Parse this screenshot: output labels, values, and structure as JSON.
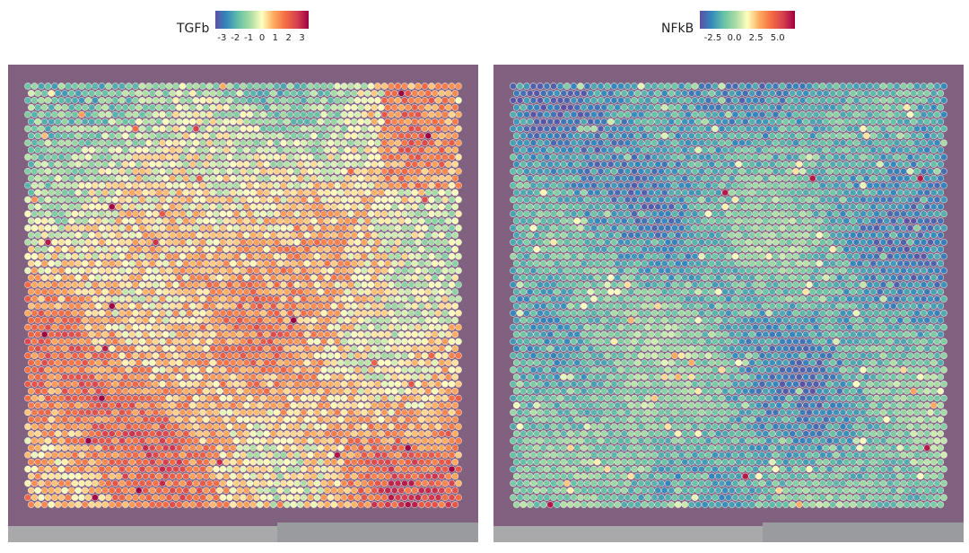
{
  "chart_data": [
    {
      "type": "heatmap",
      "variable": "TGFb",
      "legend": {
        "title": "TGFb",
        "ticks": [
          -3,
          -2,
          -1,
          0,
          1,
          2,
          3
        ],
        "tick_labels": [
          "-3",
          "-2",
          "-1",
          "0",
          "1",
          "2",
          "3"
        ],
        "range": [
          -3.5,
          3.5
        ],
        "colormap": "Spectral (reversed): blue low, yellow mid, red high"
      },
      "grid": {
        "cols": 65,
        "rows": 60,
        "layout": "hexagonal"
      },
      "pattern": "mostly neutral-to-positive (yellow/orange); lower values (blue/green) concentrated in the upper rows; high values (orange/red) in lower half and upper-right"
    },
    {
      "type": "heatmap",
      "variable": "NFkB",
      "legend": {
        "title": "NFkB",
        "ticks": [
          -2.5,
          0.0,
          2.5,
          5.0
        ],
        "tick_labels": [
          "-2.5",
          "0.0",
          "2.5",
          "5.0"
        ],
        "range": [
          -4,
          7
        ],
        "colormap": "Spectral (reversed): blue low, yellow mid, red high"
      },
      "grid": {
        "cols": 65,
        "rows": 60,
        "layout": "hexagonal"
      },
      "pattern": "mostly negative (blue/teal) with scattered yellow spots; a few isolated high (dark red) spots"
    }
  ],
  "colors": {
    "tissue_background": "#7d5d7c",
    "slide_border": "#a9a9ab",
    "bottom_strip": "#9a9b9f",
    "spot_outline": "#ffffff"
  }
}
